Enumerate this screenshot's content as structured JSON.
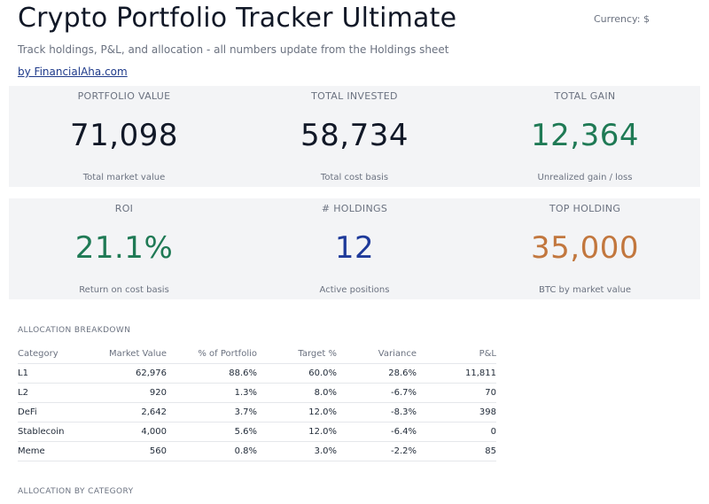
{
  "header": {
    "title": "Crypto Portfolio Tracker Ultimate",
    "currency": "Currency: $",
    "subtitle": "Track holdings, P&L, and allocation - all numbers update from the Holdings sheet",
    "byline": "by FinancialAha.com"
  },
  "kpis_row1": [
    {
      "label": "PORTFOLIO VALUE",
      "value": "71,098",
      "caption": "Total market value"
    },
    {
      "label": "TOTAL INVESTED",
      "value": "58,734",
      "caption": "Total cost basis"
    },
    {
      "label": "TOTAL GAIN",
      "value": "12,364",
      "caption": "Unrealized gain / loss"
    }
  ],
  "kpis_row2": [
    {
      "label": "ROI",
      "value": "21.1%",
      "caption": "Return on cost basis"
    },
    {
      "label": "# HOLDINGS",
      "value": "12",
      "caption": "Active positions"
    },
    {
      "label": "TOP HOLDING",
      "value": "35,000",
      "caption": "BTC by market value"
    }
  ],
  "allocation": {
    "section_label": "ALLOCATION BREAKDOWN",
    "columns": [
      "Category",
      "Market Value",
      "% of Portfolio",
      "Target %",
      "Variance",
      "P&L"
    ],
    "rows": [
      {
        "category": "L1",
        "market_value": "62,976",
        "pct": "88.6%",
        "target": "60.0%",
        "variance": "28.6%",
        "pnl": "11,811"
      },
      {
        "category": "L2",
        "market_value": "920",
        "pct": "1.3%",
        "target": "8.0%",
        "variance": "-6.7%",
        "pnl": "70"
      },
      {
        "category": "DeFi",
        "market_value": "2,642",
        "pct": "3.7%",
        "target": "12.0%",
        "variance": "-8.3%",
        "pnl": "398"
      },
      {
        "category": "Stablecoin",
        "market_value": "4,000",
        "pct": "5.6%",
        "target": "12.0%",
        "variance": "-6.4%",
        "pnl": "0"
      },
      {
        "category": "Meme",
        "market_value": "560",
        "pct": "0.8%",
        "target": "3.0%",
        "variance": "-2.2%",
        "pnl": "85"
      }
    ]
  },
  "allocation_by_category": {
    "section_label": "ALLOCATION BY CATEGORY"
  },
  "colors": {
    "positive": "#1f7a55",
    "negative": "#b91c1c",
    "holdings_blue": "#1e3a9a",
    "top_holding_orange": "#c2773e",
    "card_bg": "#f3f4f6"
  }
}
